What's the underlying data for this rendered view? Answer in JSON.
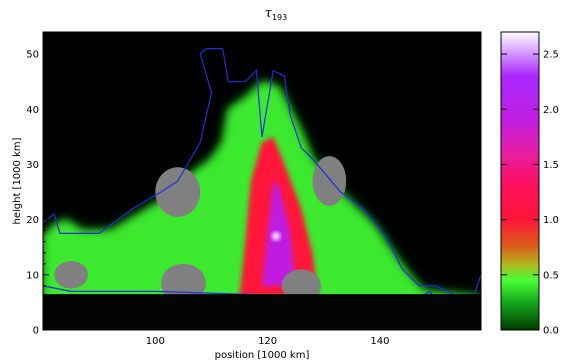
{
  "chart_data": {
    "type": "heatmap",
    "title_symbol": "τ",
    "title_subscript": "193",
    "xlabel": "position [1000 km]",
    "ylabel": "height [1000 km]",
    "xlim": [
      80,
      158
    ],
    "ylim": [
      0,
      54
    ],
    "xticks": [
      100,
      120,
      140
    ],
    "yticks": [
      0,
      10,
      20,
      30,
      40,
      50
    ],
    "colorbar": {
      "ticks": [
        "0.0",
        "0.5",
        "1.0",
        "1.5",
        "2.0",
        "2.5"
      ],
      "tick_values": [
        0.0,
        0.5,
        1.0,
        1.5,
        2.0,
        2.5
      ],
      "range": [
        0.0,
        2.7
      ],
      "stops": [
        {
          "v": 0.0,
          "color": "#003a00"
        },
        {
          "v": 0.25,
          "color": "#16a81a"
        },
        {
          "v": 0.45,
          "color": "#48ff36"
        },
        {
          "v": 0.6,
          "color": "#b4b41e"
        },
        {
          "v": 0.75,
          "color": "#d86018"
        },
        {
          "v": 1.0,
          "color": "#ff1638"
        },
        {
          "v": 1.3,
          "color": "#ff0e5a"
        },
        {
          "v": 1.6,
          "color": "#e61ea0"
        },
        {
          "v": 1.9,
          "color": "#c01ee0"
        },
        {
          "v": 2.3,
          "color": "#a828ff"
        },
        {
          "v": 2.7,
          "color": "#ffffff"
        }
      ]
    },
    "colors": {
      "background": "#000000",
      "saturated_blobs": "#808080",
      "contour": "#1e2edc"
    },
    "emission_region": [
      [
        80,
        17
      ],
      [
        82,
        19
      ],
      [
        84,
        20
      ],
      [
        87,
        18
      ],
      [
        92,
        18
      ],
      [
        97,
        21
      ],
      [
        102,
        24
      ],
      [
        106,
        28
      ],
      [
        110,
        31
      ],
      [
        112,
        34
      ],
      [
        113,
        40
      ],
      [
        116,
        42
      ],
      [
        119,
        45
      ],
      [
        122,
        44
      ],
      [
        124,
        40
      ],
      [
        126,
        36
      ],
      [
        128,
        31
      ],
      [
        133,
        25
      ],
      [
        139,
        19
      ],
      [
        143,
        13
      ],
      [
        146,
        9
      ],
      [
        148,
        7
      ],
      [
        158,
        6
      ],
      [
        158,
        0
      ],
      [
        80,
        0
      ]
    ],
    "blue_contour": [
      [
        80,
        19.5
      ],
      [
        82,
        21
      ],
      [
        83,
        17.5
      ],
      [
        90,
        17.5
      ],
      [
        96,
        22
      ],
      [
        101,
        25
      ],
      [
        104,
        27
      ],
      [
        108,
        34
      ],
      [
        110,
        43
      ],
      [
        108,
        50
      ],
      [
        109,
        51
      ],
      [
        112,
        51
      ],
      [
        113,
        45
      ],
      [
        116,
        45
      ],
      [
        118,
        47
      ],
      [
        119,
        35
      ],
      [
        121,
        47
      ],
      [
        123,
        46
      ],
      [
        124,
        39
      ],
      [
        126,
        33
      ],
      [
        128,
        31
      ],
      [
        133,
        25
      ],
      [
        137,
        22
      ],
      [
        141,
        17
      ],
      [
        144,
        11
      ],
      [
        147,
        8
      ],
      [
        150,
        8
      ],
      [
        154,
        6
      ],
      [
        156,
        5
      ],
      [
        157,
        7
      ],
      [
        158,
        10
      ]
    ],
    "blue_contour_lower": [
      [
        80,
        8
      ],
      [
        85,
        7
      ],
      [
        100,
        7
      ],
      [
        130,
        6
      ],
      [
        147,
        6
      ],
      [
        149,
        7
      ],
      [
        150,
        4
      ],
      [
        153,
        3
      ]
    ],
    "hot_core": [
      [
        115,
        6
      ],
      [
        116,
        16
      ],
      [
        117,
        27
      ],
      [
        119,
        34
      ],
      [
        121,
        35
      ],
      [
        123,
        30
      ],
      [
        126,
        22
      ],
      [
        128,
        14
      ],
      [
        129,
        6
      ]
    ],
    "bright_core": [
      [
        119,
        8
      ],
      [
        120,
        18
      ],
      [
        121,
        27
      ],
      [
        122,
        26
      ],
      [
        124,
        18
      ],
      [
        125,
        8
      ]
    ],
    "peak_point": [
      121.5,
      17
    ],
    "saturated_blobs": [
      {
        "cx": 104,
        "cy": 25,
        "rx": 4,
        "ry": 4.5
      },
      {
        "cx": 131,
        "cy": 27,
        "rx": 3,
        "ry": 4.5
      },
      {
        "cx": 85,
        "cy": 10,
        "rx": 3,
        "ry": 2.5
      },
      {
        "cx": 105,
        "cy": 8.5,
        "rx": 4,
        "ry": 3.5
      },
      {
        "cx": 126,
        "cy": 8,
        "rx": 3.5,
        "ry": 3
      }
    ],
    "noise_floor": {
      "y_top": 6.5
    }
  }
}
